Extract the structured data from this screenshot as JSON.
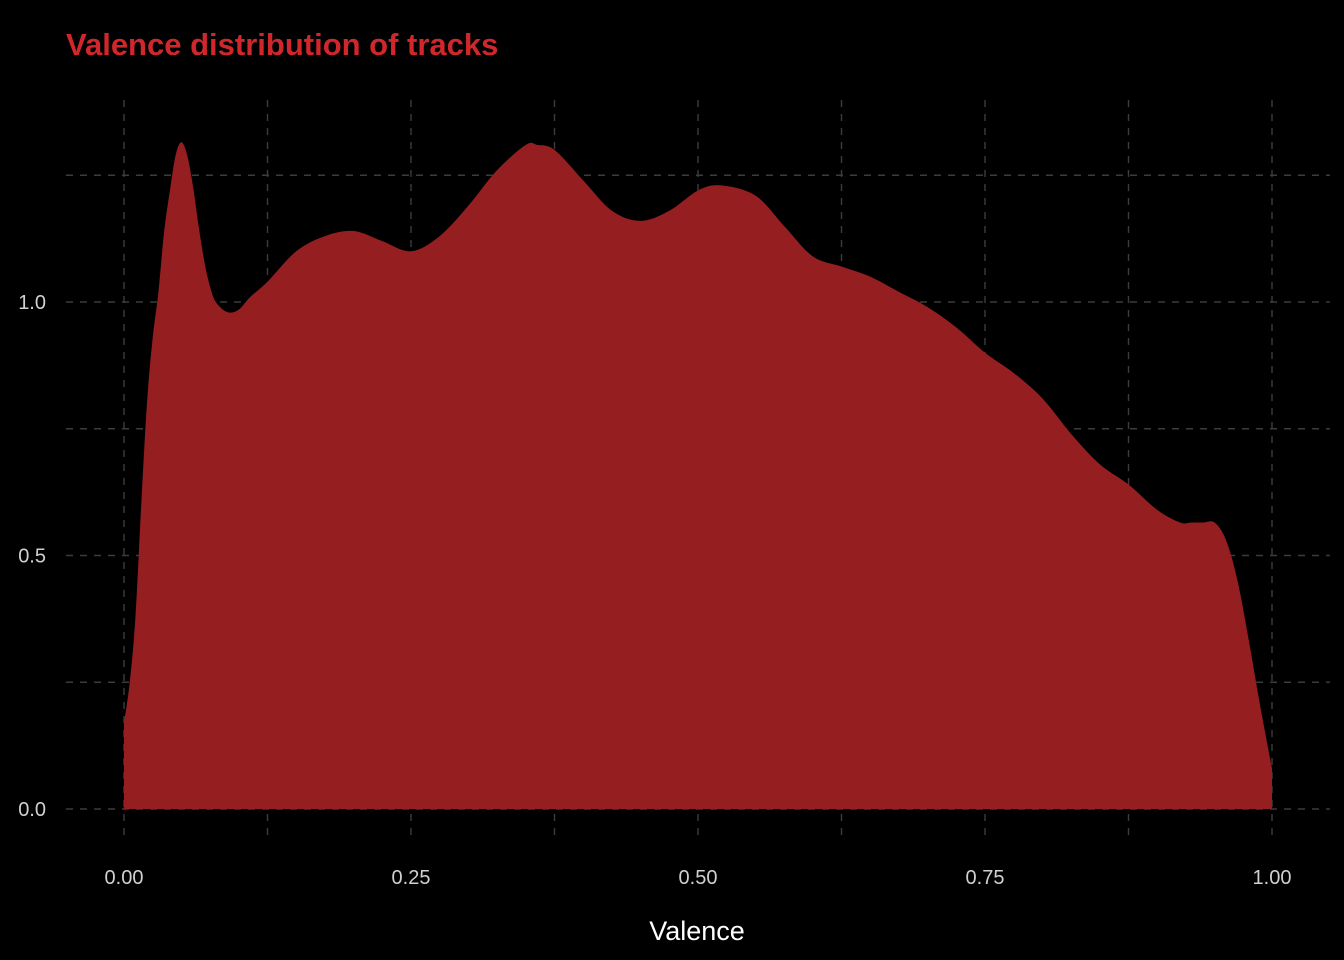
{
  "chart_data": {
    "type": "area",
    "title": "Valence distribution of tracks",
    "xlabel": "Valence",
    "ylabel": "",
    "xlim": [
      -0.05,
      1.05
    ],
    "ylim": [
      -0.04,
      1.38
    ],
    "x_ticks": [
      {
        "value": 0.0,
        "label": "0.00"
      },
      {
        "value": 0.25,
        "label": "0.25"
      },
      {
        "value": 0.5,
        "label": "0.50"
      },
      {
        "value": 0.75,
        "label": "0.75"
      },
      {
        "value": 1.0,
        "label": "1.00"
      }
    ],
    "x_minor_ticks": [
      0.125,
      0.375,
      0.625,
      0.875
    ],
    "y_ticks": [
      {
        "value": 0.0,
        "label": "0.0"
      },
      {
        "value": 0.5,
        "label": "0.5"
      },
      {
        "value": 1.0,
        "label": "1.0"
      }
    ],
    "y_minor_ticks": [
      0.25,
      0.75,
      1.25
    ],
    "grid": true,
    "grid_style": "dashed",
    "legend": "none",
    "series": [
      {
        "x": [
          0.0,
          0.005,
          0.01,
          0.015,
          0.02,
          0.025,
          0.03,
          0.035,
          0.04,
          0.045,
          0.05,
          0.055,
          0.06,
          0.065,
          0.07,
          0.075,
          0.08,
          0.09,
          0.1,
          0.11,
          0.125,
          0.15,
          0.175,
          0.2,
          0.225,
          0.25,
          0.275,
          0.3,
          0.325,
          0.35,
          0.36,
          0.375,
          0.4,
          0.425,
          0.45,
          0.475,
          0.5,
          0.52,
          0.55,
          0.575,
          0.6,
          0.625,
          0.65,
          0.675,
          0.7,
          0.725,
          0.75,
          0.775,
          0.8,
          0.825,
          0.85,
          0.875,
          0.9,
          0.92,
          0.93,
          0.94,
          0.95,
          0.96,
          0.97,
          0.98,
          0.99,
          1.0
        ],
        "y": [
          0.17,
          0.25,
          0.38,
          0.6,
          0.8,
          0.93,
          1.02,
          1.14,
          1.22,
          1.29,
          1.315,
          1.29,
          1.23,
          1.15,
          1.08,
          1.03,
          1.0,
          0.98,
          0.985,
          1.01,
          1.04,
          1.1,
          1.13,
          1.14,
          1.12,
          1.1,
          1.13,
          1.19,
          1.26,
          1.31,
          1.31,
          1.3,
          1.24,
          1.18,
          1.16,
          1.18,
          1.22,
          1.23,
          1.21,
          1.15,
          1.09,
          1.07,
          1.05,
          1.02,
          0.99,
          0.95,
          0.9,
          0.86,
          0.81,
          0.74,
          0.68,
          0.64,
          0.59,
          0.565,
          0.565,
          0.565,
          0.565,
          0.53,
          0.45,
          0.33,
          0.2,
          0.08
        ],
        "color": "#951e21"
      }
    ],
    "colors": {
      "background": "#000000",
      "fill": "#951e21",
      "title": "#d1272b",
      "grid": "#3c3c3c",
      "tick_text": "#d0d0d0",
      "axis_text": "#ffffff"
    }
  }
}
